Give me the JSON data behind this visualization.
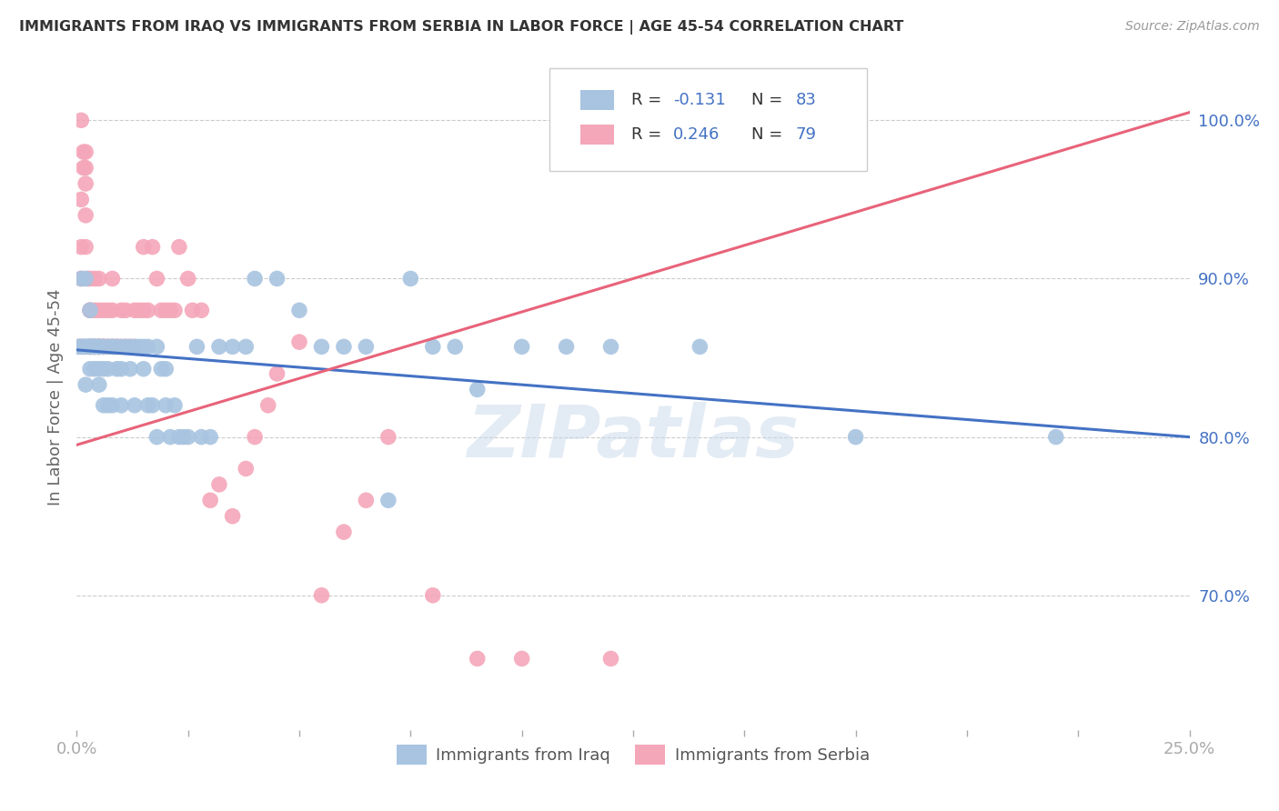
{
  "title": "IMMIGRANTS FROM IRAQ VS IMMIGRANTS FROM SERBIA IN LABOR FORCE | AGE 45-54 CORRELATION CHART",
  "source": "Source: ZipAtlas.com",
  "ylabel": "In Labor Force | Age 45-54",
  "xmin": 0.0,
  "xmax": 0.25,
  "ymin": 0.615,
  "ymax": 1.035,
  "xticks": [
    0.0,
    0.025,
    0.05,
    0.075,
    0.1,
    0.125,
    0.15,
    0.175,
    0.2,
    0.225,
    0.25
  ],
  "ytick_positions": [
    0.7,
    0.8,
    0.9,
    1.0
  ],
  "ytick_labels": [
    "70.0%",
    "80.0%",
    "90.0%",
    "100.0%"
  ],
  "iraq_color": "#a8c4e0",
  "serbia_color": "#f4a7b9",
  "iraq_line_color": "#4472c4",
  "serbia_line_color": "#e8637a",
  "iraq_R": -0.131,
  "iraq_N": 83,
  "serbia_R": 0.246,
  "serbia_N": 79,
  "legend_label_iraq": "Immigrants from Iraq",
  "legend_label_serbia": "Immigrants from Serbia",
  "watermark": "ZIPatlas",
  "iraq_line_x0": 0.0,
  "iraq_line_y0": 0.855,
  "iraq_line_x1": 0.25,
  "iraq_line_y1": 0.8,
  "serbia_line_x0": 0.0,
  "serbia_line_y0": 0.795,
  "serbia_line_x1": 0.25,
  "serbia_line_y1": 1.005,
  "iraq_x": [
    0.0005,
    0.001,
    0.001,
    0.0015,
    0.0015,
    0.002,
    0.002,
    0.002,
    0.002,
    0.0025,
    0.003,
    0.003,
    0.003,
    0.003,
    0.003,
    0.0035,
    0.004,
    0.004,
    0.004,
    0.004,
    0.005,
    0.005,
    0.005,
    0.005,
    0.005,
    0.006,
    0.006,
    0.006,
    0.007,
    0.007,
    0.007,
    0.008,
    0.008,
    0.008,
    0.009,
    0.009,
    0.01,
    0.01,
    0.01,
    0.011,
    0.012,
    0.012,
    0.013,
    0.013,
    0.014,
    0.015,
    0.015,
    0.016,
    0.016,
    0.017,
    0.018,
    0.018,
    0.019,
    0.02,
    0.02,
    0.021,
    0.022,
    0.023,
    0.024,
    0.025,
    0.027,
    0.028,
    0.03,
    0.032,
    0.035,
    0.038,
    0.04,
    0.045,
    0.05,
    0.055,
    0.06,
    0.065,
    0.07,
    0.075,
    0.08,
    0.085,
    0.09,
    0.1,
    0.11,
    0.12,
    0.14,
    0.175,
    0.22
  ],
  "iraq_y": [
    0.857,
    0.9,
    0.857,
    0.857,
    0.857,
    0.857,
    0.833,
    0.857,
    0.9,
    0.857,
    0.857,
    0.857,
    0.843,
    0.857,
    0.88,
    0.857,
    0.857,
    0.843,
    0.857,
    0.857,
    0.857,
    0.843,
    0.857,
    0.833,
    0.857,
    0.857,
    0.843,
    0.82,
    0.857,
    0.843,
    0.82,
    0.857,
    0.857,
    0.82,
    0.857,
    0.843,
    0.843,
    0.82,
    0.857,
    0.857,
    0.857,
    0.843,
    0.857,
    0.82,
    0.857,
    0.857,
    0.843,
    0.857,
    0.82,
    0.82,
    0.857,
    0.8,
    0.843,
    0.843,
    0.82,
    0.8,
    0.82,
    0.8,
    0.8,
    0.8,
    0.857,
    0.8,
    0.8,
    0.857,
    0.857,
    0.857,
    0.9,
    0.9,
    0.88,
    0.857,
    0.857,
    0.857,
    0.76,
    0.9,
    0.857,
    0.857,
    0.83,
    0.857,
    0.857,
    0.857,
    0.857,
    0.8,
    0.8
  ],
  "serbia_x": [
    0.0005,
    0.001,
    0.001,
    0.001,
    0.001,
    0.001,
    0.0015,
    0.0015,
    0.002,
    0.002,
    0.002,
    0.002,
    0.002,
    0.0025,
    0.003,
    0.003,
    0.003,
    0.003,
    0.003,
    0.003,
    0.004,
    0.004,
    0.004,
    0.004,
    0.005,
    0.005,
    0.005,
    0.005,
    0.005,
    0.005,
    0.006,
    0.006,
    0.006,
    0.006,
    0.007,
    0.007,
    0.007,
    0.008,
    0.008,
    0.008,
    0.009,
    0.009,
    0.01,
    0.01,
    0.011,
    0.011,
    0.012,
    0.013,
    0.013,
    0.014,
    0.015,
    0.015,
    0.016,
    0.017,
    0.018,
    0.019,
    0.02,
    0.021,
    0.022,
    0.023,
    0.025,
    0.026,
    0.028,
    0.03,
    0.032,
    0.035,
    0.038,
    0.04,
    0.043,
    0.045,
    0.05,
    0.055,
    0.06,
    0.065,
    0.07,
    0.08,
    0.09,
    0.1,
    0.12
  ],
  "serbia_y": [
    0.857,
    1.0,
    0.95,
    0.92,
    0.9,
    0.857,
    0.98,
    0.97,
    0.98,
    0.97,
    0.96,
    0.94,
    0.92,
    0.9,
    0.9,
    0.88,
    0.88,
    0.857,
    0.857,
    0.857,
    0.9,
    0.88,
    0.857,
    0.857,
    0.9,
    0.88,
    0.857,
    0.857,
    0.857,
    0.857,
    0.88,
    0.857,
    0.857,
    0.857,
    0.88,
    0.857,
    0.857,
    0.9,
    0.88,
    0.857,
    0.857,
    0.857,
    0.88,
    0.857,
    0.88,
    0.857,
    0.857,
    0.88,
    0.857,
    0.88,
    0.92,
    0.88,
    0.88,
    0.92,
    0.9,
    0.88,
    0.88,
    0.88,
    0.88,
    0.92,
    0.9,
    0.88,
    0.88,
    0.76,
    0.77,
    0.75,
    0.78,
    0.8,
    0.82,
    0.84,
    0.86,
    0.7,
    0.74,
    0.76,
    0.8,
    0.7,
    0.66,
    0.66,
    0.66
  ]
}
